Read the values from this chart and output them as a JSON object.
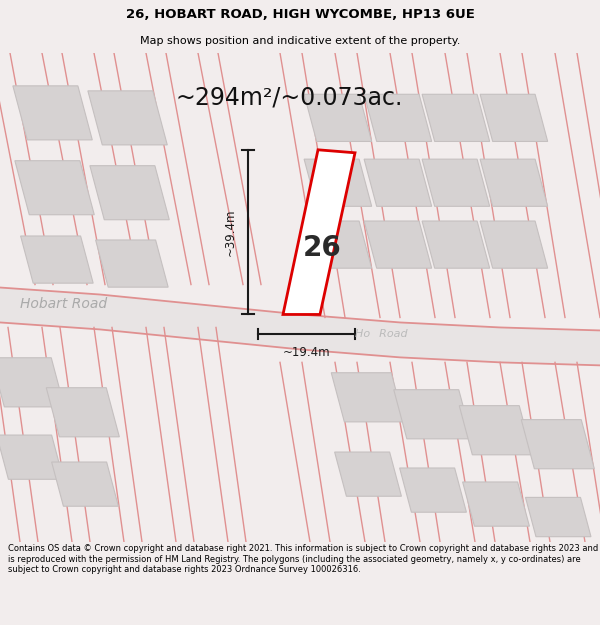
{
  "title_line1": "26, HOBART ROAD, HIGH WYCOMBE, HP13 6UE",
  "title_line2": "Map shows position and indicative extent of the property.",
  "area_text": "~294m²/~0.073ac.",
  "dim_vertical": "~39.4m",
  "dim_horizontal": "~19.4m",
  "property_number": "26",
  "road_name_left": "Hobart Road",
  "road_name_right": "Ho           Road",
  "footer_text": "Contains OS data © Crown copyright and database right 2021. This information is subject to Crown copyright and database rights 2023 and is reproduced with the permission of HM Land Registry. The polygons (including the associated geometry, namely x, y co-ordinates) are subject to Crown copyright and database rights 2023 Ordnance Survey 100026316.",
  "bg_color": "#f2eded",
  "map_bg": "#f2eded",
  "building_fill": "#d6d2d2",
  "building_edge": "#c5c0c0",
  "road_line_color": "#e09090",
  "property_outline_color": "#dd0000",
  "dim_line_color": "#1a1a1a",
  "title_bg": "#ffffff",
  "footer_bg": "#ffffff",
  "title_fontsize": 9.5,
  "subtitle_fontsize": 8,
  "area_fontsize": 17,
  "property_num_fontsize": 20,
  "road_label_fontsize": 10,
  "dim_fontsize": 8.5,
  "footer_fontsize": 6.0
}
